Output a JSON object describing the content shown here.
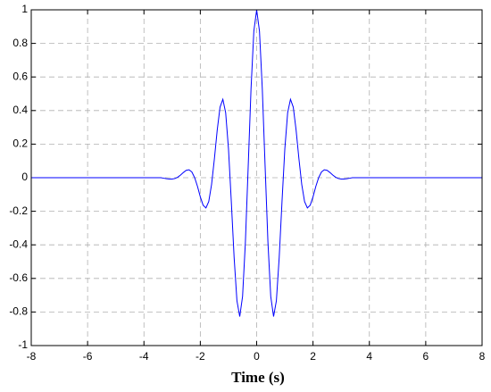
{
  "chart_data": {
    "type": "line",
    "xlabel": "Time (s)",
    "x": [
      -8,
      -3.4,
      -3.3,
      -3.2,
      -3.1,
      -3.0,
      -2.9,
      -2.8,
      -2.7,
      -2.6,
      -2.5,
      -2.4,
      -2.3,
      -2.2,
      -2.1,
      -2.0,
      -1.9,
      -1.8,
      -1.7,
      -1.6,
      -1.5,
      -1.4,
      -1.3,
      -1.2,
      -1.1,
      -1.0,
      -0.9,
      -0.8,
      -0.7,
      -0.6,
      -0.5,
      -0.4,
      -0.3,
      -0.2,
      -0.1,
      0,
      0.1,
      0.2,
      0.3,
      0.4,
      0.5,
      0.6,
      0.7,
      0.8,
      0.9,
      1.0,
      1.1,
      1.2,
      1.3,
      1.4,
      1.5,
      1.6,
      1.7,
      1.8,
      1.9,
      2.0,
      2.1,
      2.2,
      2.3,
      2.4,
      2.5,
      2.6,
      2.7,
      2.8,
      2.9,
      3.0,
      3.1,
      3.2,
      3.3,
      3.4,
      8
    ],
    "series": [
      {
        "color": "#0000ff",
        "values": [
          0,
          0,
          -0.003,
          -0.006,
          -0.008,
          -0.008,
          -0.005,
          0.003,
          0.016,
          0.031,
          0.044,
          0.047,
          0.034,
          0,
          -0.052,
          -0.114,
          -0.164,
          -0.18,
          -0.142,
          -0.04,
          0.113,
          0.283,
          0.42,
          0.467,
          0.387,
          0.172,
          -0.141,
          -0.475,
          -0.733,
          -0.827,
          -0.707,
          -0.384,
          0.068,
          0.53,
          0.873,
          1,
          0.873,
          0.53,
          0.068,
          -0.384,
          -0.707,
          -0.827,
          -0.733,
          -0.475,
          -0.141,
          0.172,
          0.387,
          0.467,
          0.42,
          0.283,
          0.113,
          -0.04,
          -0.142,
          -0.18,
          -0.164,
          -0.114,
          -0.052,
          0,
          0.034,
          0.047,
          0.044,
          0.031,
          0.016,
          0.003,
          -0.005,
          -0.008,
          -0.008,
          -0.006,
          -0.003,
          0,
          0
        ]
      }
    ],
    "xlim": [
      -8,
      8
    ],
    "xticks": [
      -8,
      -6,
      -4,
      -2,
      0,
      2,
      4,
      6,
      8
    ],
    "ylim": [
      -1,
      1
    ],
    "yticks": [
      -1,
      -0.8,
      -0.6,
      -0.4,
      -0.2,
      0,
      0.2,
      0.4,
      0.6,
      0.8,
      1
    ],
    "grid": true
  }
}
